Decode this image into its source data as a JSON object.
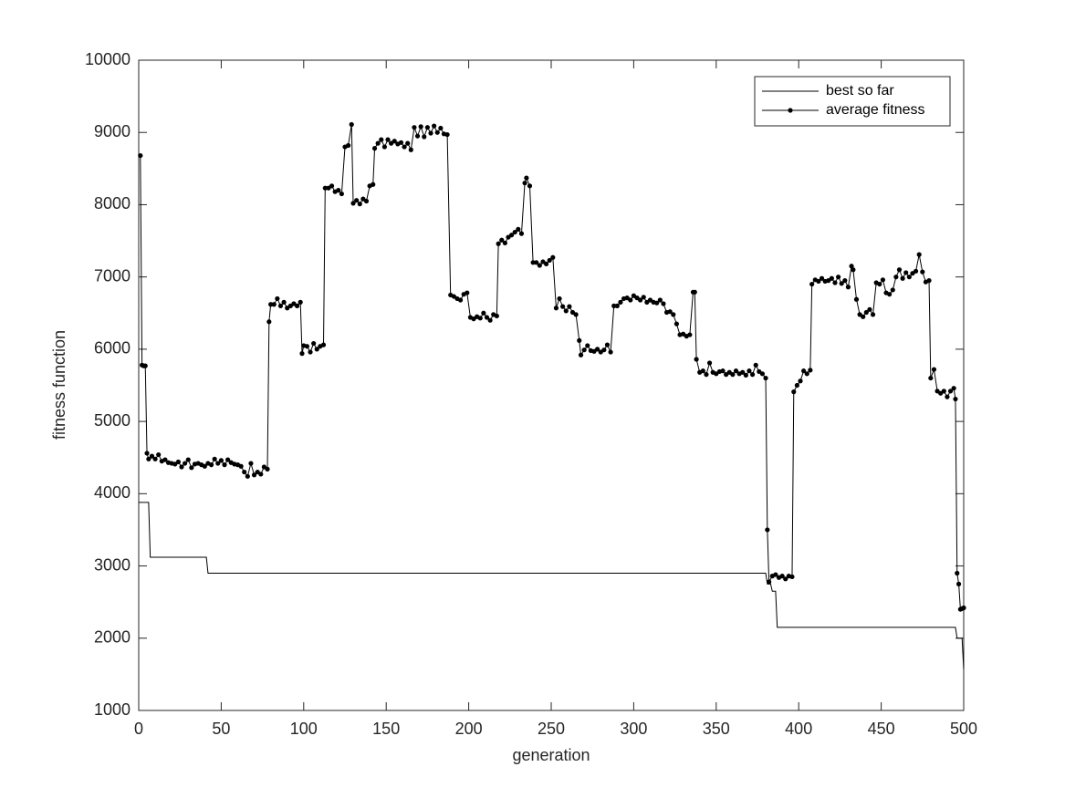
{
  "chart_data": {
    "type": "line",
    "xlabel": "generation",
    "ylabel": "fitness function",
    "xlim": [
      0,
      500
    ],
    "xticks": [
      0,
      50,
      100,
      150,
      200,
      250,
      300,
      350,
      400,
      450,
      500
    ],
    "ylim": [
      1000,
      10000
    ],
    "yticks": [
      1000,
      2000,
      3000,
      4000,
      5000,
      6000,
      7000,
      8000,
      9000,
      10000
    ],
    "legend": "northeast",
    "grid": false,
    "series": [
      {
        "name": "best so far",
        "color": "#000000",
        "marker": "none",
        "x": [
          0,
          6,
          7,
          41,
          42,
          380,
          381,
          383,
          384,
          386,
          387,
          495,
          496,
          499,
          500
        ],
        "values": [
          3880,
          3880,
          3120,
          3120,
          2900,
          2900,
          2750,
          2750,
          2650,
          2650,
          2150,
          2150,
          2000,
          2000,
          1570
        ]
      },
      {
        "name": "average fitness",
        "color": "#000000",
        "marker": "o",
        "x": [
          1,
          2,
          3,
          4,
          5,
          6,
          8,
          10,
          12,
          14,
          16,
          18,
          20,
          22,
          24,
          26,
          28,
          30,
          32,
          34,
          36,
          38,
          40,
          42,
          44,
          46,
          48,
          50,
          52,
          54,
          56,
          58,
          60,
          62,
          64,
          66,
          68,
          70,
          72,
          74,
          76,
          78,
          79,
          80,
          82,
          84,
          86,
          88,
          90,
          92,
          94,
          96,
          98,
          99,
          100,
          102,
          104,
          106,
          108,
          110,
          112,
          113,
          115,
          117,
          119,
          121,
          123,
          125,
          127,
          129,
          130,
          132,
          134,
          136,
          138,
          140,
          142,
          143,
          145,
          147,
          149,
          151,
          153,
          155,
          157,
          159,
          161,
          163,
          165,
          167,
          169,
          171,
          173,
          175,
          177,
          179,
          181,
          183,
          185,
          187,
          189,
          191,
          193,
          195,
          197,
          199,
          201,
          203,
          205,
          207,
          209,
          211,
          213,
          215,
          217,
          218,
          220,
          222,
          224,
          226,
          228,
          230,
          232,
          234,
          235,
          237,
          239,
          241,
          243,
          245,
          247,
          249,
          251,
          253,
          255,
          257,
          259,
          261,
          263,
          265,
          267,
          268,
          270,
          272,
          274,
          276,
          278,
          280,
          282,
          284,
          286,
          288,
          290,
          292,
          294,
          296,
          298,
          300,
          302,
          304,
          306,
          308,
          310,
          312,
          314,
          316,
          318,
          320,
          322,
          324,
          326,
          328,
          330,
          332,
          334,
          336,
          337,
          338,
          340,
          342,
          344,
          346,
          348,
          350,
          352,
          354,
          356,
          358,
          360,
          362,
          364,
          366,
          368,
          370,
          372,
          374,
          376,
          378,
          380,
          381,
          382,
          384,
          386,
          388,
          390,
          392,
          394,
          396,
          397,
          399,
          401,
          403,
          405,
          407,
          408,
          410,
          412,
          414,
          416,
          418,
          420,
          422,
          424,
          426,
          428,
          430,
          432,
          433,
          435,
          437,
          439,
          441,
          443,
          445,
          447,
          449,
          451,
          453,
          455,
          457,
          459,
          461,
          463,
          465,
          467,
          469,
          471,
          473,
          475,
          477,
          479,
          480,
          482,
          484,
          486,
          488,
          490,
          492,
          494,
          495,
          496,
          497,
          498,
          499,
          500
        ],
        "values": [
          8680,
          5780,
          5770,
          5770,
          4560,
          4480,
          4520,
          4480,
          4540,
          4450,
          4470,
          4430,
          4420,
          4410,
          4440,
          4370,
          4420,
          4470,
          4360,
          4410,
          4420,
          4400,
          4380,
          4420,
          4400,
          4480,
          4420,
          4460,
          4400,
          4470,
          4430,
          4410,
          4400,
          4380,
          4300,
          4240,
          4420,
          4260,
          4300,
          4270,
          4370,
          4340,
          6380,
          6620,
          6620,
          6700,
          6600,
          6650,
          6570,
          6600,
          6630,
          6600,
          6650,
          5940,
          6050,
          6040,
          5960,
          6080,
          6000,
          6040,
          6060,
          8230,
          8230,
          8260,
          8180,
          8200,
          8150,
          8800,
          8820,
          9110,
          8020,
          8060,
          8010,
          8080,
          8050,
          8260,
          8280,
          8780,
          8850,
          8900,
          8800,
          8900,
          8850,
          8880,
          8840,
          8860,
          8800,
          8850,
          8760,
          9070,
          8950,
          9080,
          8940,
          9070,
          8990,
          9090,
          9000,
          9060,
          8980,
          8970,
          6750,
          6730,
          6700,
          6680,
          6760,
          6780,
          6440,
          6420,
          6450,
          6430,
          6500,
          6440,
          6400,
          6480,
          6460,
          7460,
          7510,
          7470,
          7550,
          7580,
          7620,
          7660,
          7600,
          8300,
          8370,
          8260,
          7200,
          7200,
          7160,
          7210,
          7180,
          7230,
          7270,
          6570,
          6700,
          6590,
          6530,
          6590,
          6510,
          6480,
          6120,
          5920,
          5990,
          6050,
          5980,
          5970,
          6000,
          5960,
          5990,
          6060,
          5960,
          6600,
          6600,
          6650,
          6700,
          6710,
          6680,
          6740,
          6710,
          6680,
          6720,
          6650,
          6680,
          6650,
          6640,
          6680,
          6630,
          6510,
          6520,
          6480,
          6350,
          6200,
          6210,
          6180,
          6200,
          6790,
          6790,
          5860,
          5680,
          5700,
          5650,
          5810,
          5680,
          5660,
          5690,
          5700,
          5650,
          5680,
          5650,
          5700,
          5660,
          5680,
          5640,
          5700,
          5650,
          5780,
          5690,
          5660,
          5600,
          3500,
          2780,
          2860,
          2880,
          2840,
          2860,
          2820,
          2860,
          2850,
          5410,
          5500,
          5560,
          5700,
          5660,
          5710,
          6900,
          6960,
          6940,
          6980,
          6940,
          6950,
          6980,
          6920,
          7000,
          6910,
          6950,
          6860,
          7150,
          7100,
          6690,
          6480,
          6450,
          6510,
          6550,
          6480,
          6920,
          6900,
          6960,
          6780,
          6760,
          6820,
          7000,
          7100,
          6980,
          7060,
          7000,
          7050,
          7080,
          7310,
          7070,
          6930,
          6950,
          5600,
          5720,
          5420,
          5390,
          5420,
          5340,
          5420,
          5460,
          5310,
          2900,
          2750,
          2400,
          2410,
          2420
        ]
      }
    ]
  }
}
